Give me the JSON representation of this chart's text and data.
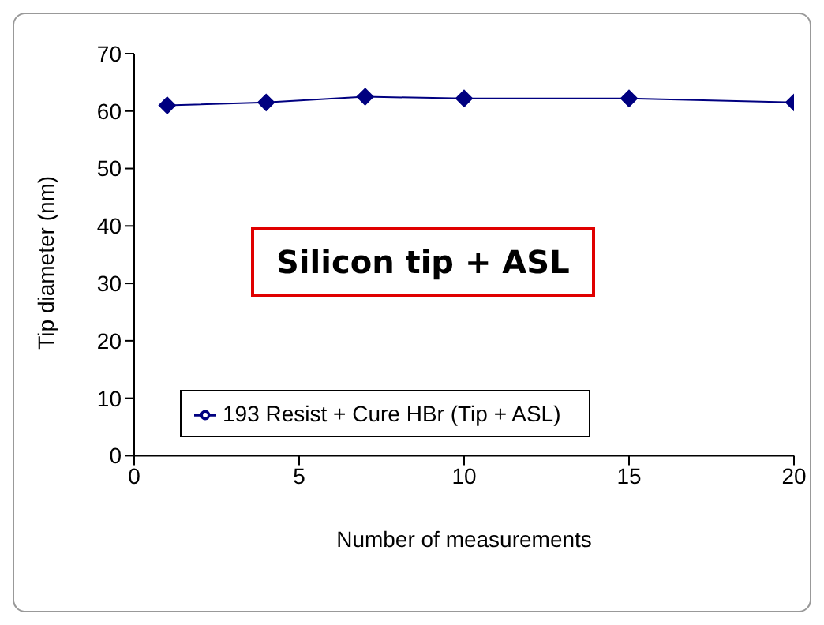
{
  "chart_data": {
    "type": "line",
    "xlabel": "Number of measurements",
    "ylabel": "Tip diameter (nm)",
    "x": [
      1,
      4,
      7,
      10,
      15,
      20
    ],
    "series": [
      {
        "name": "193 Resist + Cure HBr (Tip + ASL)",
        "color": "#000080",
        "values": [
          61,
          61.5,
          62.5,
          62.2,
          62.2,
          61.5
        ]
      }
    ],
    "xlim": [
      0,
      20
    ],
    "xticks": [
      0,
      5,
      10,
      15,
      20
    ],
    "ylim": [
      0,
      70
    ],
    "yticks": [
      0,
      10,
      20,
      30,
      40,
      50,
      60,
      70
    ],
    "marker": "diamond",
    "legend": "bottom",
    "annotations": [
      "Silicon tip + ASL"
    ]
  }
}
